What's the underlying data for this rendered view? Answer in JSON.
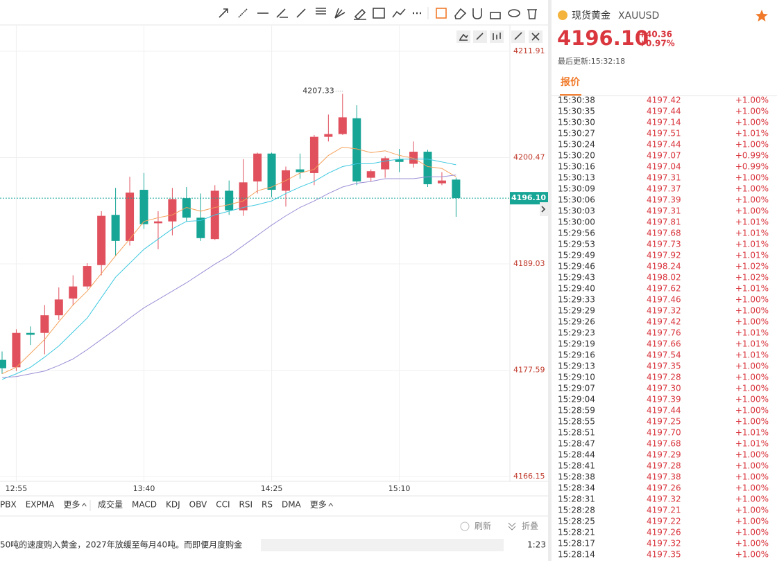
{
  "chart_data": {
    "type": "candlestick",
    "categories": [
      null,
      "12:55",
      null,
      null,
      null,
      null,
      null,
      null,
      null,
      null,
      "13:40",
      null,
      null,
      null,
      null,
      null,
      null,
      null,
      null,
      "14:25",
      null,
      null,
      null,
      null,
      null,
      null,
      null,
      null,
      "15:10",
      null,
      null,
      null,
      null
    ],
    "open": [
      4178.7,
      4177.9,
      4181.6,
      4181.6,
      4183.5,
      4185.3,
      4186.6,
      4188.9,
      4194.3,
      4191.5,
      4197.0,
      4193.4,
      4193.6,
      4196.1,
      4194.0,
      4191.7,
      4196.9,
      4194.8,
      4197.9,
      4200.9,
      4196.9,
      4199.2,
      4198.8,
      4202.7,
      4203.0,
      4204.7,
      4198.3,
      4199.2,
      4200.3,
      4199.8,
      4201.1,
      4197.7,
      4198.1
    ],
    "high": [
      4179.6,
      4182.0,
      4182.3,
      4184.6,
      4186.5,
      4187.8,
      4189.1,
      4194.7,
      4197.2,
      4198.4,
      4198.8,
      4194.7,
      4197.2,
      4197.3,
      4196.6,
      4197.5,
      4198.0,
      4200.3,
      4201.0,
      4201.0,
      4199.5,
      4200.9,
      4202.9,
      4205.1,
      4207.33,
      4206.1,
      4199.2,
      4200.6,
      4201.4,
      4202.2,
      4201.3,
      4198.9,
      4198.3
    ],
    "low": [
      4177.2,
      4177.5,
      4180.3,
      4179.3,
      4183.0,
      4184.6,
      4186.3,
      4187.8,
      4189.9,
      4191.0,
      4192.8,
      4190.6,
      4192.1,
      4193.6,
      4191.5,
      4191.6,
      4194.3,
      4194.2,
      4196.6,
      4196.2,
      4195.2,
      4198.2,
      4197.5,
      4202.2,
      4202.9,
      4197.5,
      4197.9,
      4198.3,
      4198.9,
      4199.4,
      4197.3,
      4197.5,
      4194.1
    ],
    "close": [
      4177.8,
      4181.6,
      4181.4,
      4183.5,
      4185.2,
      4186.6,
      4188.8,
      4194.2,
      4191.5,
      4196.7,
      4193.3,
      4193.6,
      4196.0,
      4194.0,
      4191.8,
      4196.9,
      4194.8,
      4197.8,
      4200.9,
      4197.0,
      4199.1,
      4198.9,
      4202.7,
      4203.0,
      4204.8,
      4197.9,
      4199.0,
      4200.4,
      4200.0,
      4201.1,
      4197.6,
      4198.0,
      4196.1
    ],
    "up_color": "#e0505d",
    "down_color": "#17a596",
    "series": [
      {
        "color": "#f5a05a",
        "values": [
          4177.2,
          4177.9,
          4179.4,
          4180.9,
          4182.8,
          4184.6,
          4186.1,
          4188.0,
          4189.9,
          4191.7,
          4193.6,
          4194.0,
          4194.3,
          4195.1,
          4194.7,
          4195.1,
          4195.4,
          4195.8,
          4196.9,
          4197.3,
          4198.0,
          4198.8,
          4199.2,
          4200.7,
          4201.6,
          4201.4,
          4201.0,
          4201.2,
          4200.7,
          4200.4,
          4199.5,
          4199.3,
          4198.4
        ]
      },
      {
        "color": "#3cc8e0",
        "values": [
          4176.6,
          4177.2,
          4177.9,
          4179.0,
          4180.2,
          4181.7,
          4183.2,
          4185.4,
          4187.6,
          4189.1,
          4190.6,
          4191.7,
          4192.8,
          4193.6,
          4193.7,
          4194.3,
          4194.7,
          4195.1,
          4195.4,
          4195.8,
          4196.6,
          4197.3,
          4197.9,
          4198.8,
          4199.5,
          4199.8,
          4199.8,
          4200.1,
          4200.3,
          4200.3,
          4200.3,
          4200.0,
          4199.7
        ]
      },
      {
        "color": "#9b8fd6",
        "values": [
          4176.8,
          4176.9,
          4177.2,
          4177.5,
          4178.1,
          4178.8,
          4179.8,
          4180.9,
          4182.0,
          4183.2,
          4184.3,
          4185.2,
          4186.1,
          4187.0,
          4188.0,
          4189.0,
          4189.9,
          4191.0,
          4192.1,
          4193.2,
          4194.2,
          4195.1,
          4195.8,
          4196.6,
          4197.3,
          4197.7,
          4197.9,
          4198.2,
          4198.2,
          4198.2,
          4198.4,
          4198.4,
          4198.6
        ]
      }
    ],
    "ylim": [
      4166.15,
      4211.91
    ],
    "yticks": [
      4211.91,
      4200.47,
      4189.03,
      4177.59,
      4166.15
    ],
    "grid": true,
    "last_price": {
      "value": 4196.1,
      "label": "4196.10"
    }
  },
  "indicator_tabs": {
    "left": [
      "PBX",
      "EXPMA",
      "更多"
    ],
    "right": [
      "成交量",
      "MACD",
      "KDJ",
      "OBV",
      "CCI",
      "RSI",
      "RS",
      "DMA",
      "更多"
    ]
  },
  "news": {
    "text": "50吨的速度购入黄金，2027年放缓至每月40吨。而即便月度购金",
    "refresh": "刷新",
    "collapse": "折叠",
    "time": "1:23"
  },
  "quote": {
    "name": "现货黄金",
    "symbol": "XAUUSD",
    "price": "4196.10",
    "change": "+40.36",
    "change_pct": "+0.97%",
    "updated": "最后更新:15:32:18",
    "tab": "报价",
    "rows": [
      [
        "15:30:38",
        "4197.42",
        "+1.00%"
      ],
      [
        "15:30:35",
        "4197.44",
        "+1.00%"
      ],
      [
        "15:30:30",
        "4197.14",
        "+1.00%"
      ],
      [
        "15:30:27",
        "4197.51",
        "+1.01%"
      ],
      [
        "15:30:24",
        "4197.44",
        "+1.00%"
      ],
      [
        "15:30:20",
        "4197.07",
        "+0.99%"
      ],
      [
        "15:30:16",
        "4197.04",
        "+0.99%"
      ],
      [
        "15:30:13",
        "4197.31",
        "+1.00%"
      ],
      [
        "15:30:09",
        "4197.37",
        "+1.00%"
      ],
      [
        "15:30:06",
        "4197.39",
        "+1.00%"
      ],
      [
        "15:30:03",
        "4197.31",
        "+1.00%"
      ],
      [
        "15:30:00",
        "4197.81",
        "+1.01%"
      ],
      [
        "15:29:56",
        "4197.68",
        "+1.01%"
      ],
      [
        "15:29:53",
        "4197.73",
        "+1.01%"
      ],
      [
        "15:29:49",
        "4197.92",
        "+1.01%"
      ],
      [
        "15:29:46",
        "4198.24",
        "+1.02%"
      ],
      [
        "15:29:43",
        "4198.02",
        "+1.02%"
      ],
      [
        "15:29:40",
        "4197.62",
        "+1.01%"
      ],
      [
        "15:29:33",
        "4197.46",
        "+1.00%"
      ],
      [
        "15:29:29",
        "4197.32",
        "+1.00%"
      ],
      [
        "15:29:26",
        "4197.42",
        "+1.00%"
      ],
      [
        "15:29:23",
        "4197.76",
        "+1.01%"
      ],
      [
        "15:29:19",
        "4197.66",
        "+1.01%"
      ],
      [
        "15:29:16",
        "4197.54",
        "+1.01%"
      ],
      [
        "15:29:13",
        "4197.35",
        "+1.00%"
      ],
      [
        "15:29:10",
        "4197.28",
        "+1.00%"
      ],
      [
        "15:29:07",
        "4197.30",
        "+1.00%"
      ],
      [
        "15:29:04",
        "4197.39",
        "+1.00%"
      ],
      [
        "15:28:59",
        "4197.44",
        "+1.00%"
      ],
      [
        "15:28:55",
        "4197.25",
        "+1.00%"
      ],
      [
        "15:28:51",
        "4197.70",
        "+1.01%"
      ],
      [
        "15:28:47",
        "4197.68",
        "+1.01%"
      ],
      [
        "15:28:44",
        "4197.29",
        "+1.00%"
      ],
      [
        "15:28:41",
        "4197.28",
        "+1.00%"
      ],
      [
        "15:28:38",
        "4197.38",
        "+1.00%"
      ],
      [
        "15:28:34",
        "4197.26",
        "+1.00%"
      ],
      [
        "15:28:31",
        "4197.32",
        "+1.00%"
      ],
      [
        "15:28:28",
        "4197.21",
        "+1.00%"
      ],
      [
        "15:28:25",
        "4197.22",
        "+1.00%"
      ],
      [
        "15:28:21",
        "4197.26",
        "+1.00%"
      ],
      [
        "15:28:17",
        "4197.32",
        "+1.00%"
      ],
      [
        "15:28:14",
        "4197.35",
        "+1.00%"
      ]
    ]
  }
}
